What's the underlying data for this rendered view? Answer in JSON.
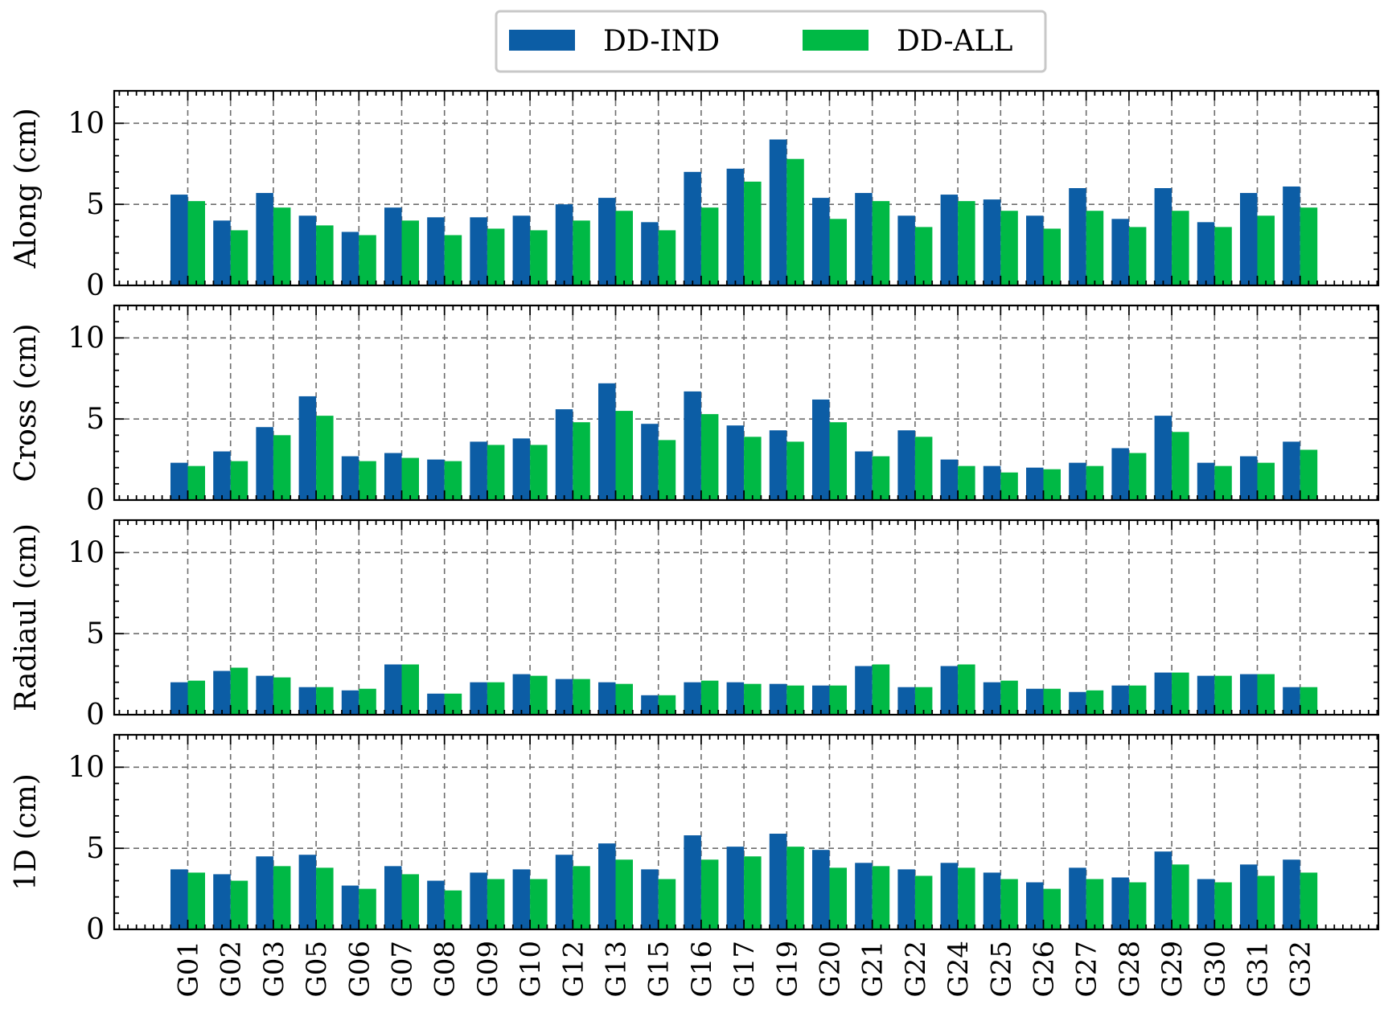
{
  "chart_data": {
    "type": "bar",
    "layout": "4 vertically stacked panels sharing x axis",
    "legend_placement": "top-center",
    "grid": true,
    "categories": [
      "G01",
      "G02",
      "G03",
      "G05",
      "G06",
      "G07",
      "G08",
      "G09",
      "G10",
      "G12",
      "G13",
      "G15",
      "G16",
      "G17",
      "G19",
      "G20",
      "G21",
      "G22",
      "G24",
      "G25",
      "G26",
      "G27",
      "G28",
      "G29",
      "G30",
      "G31",
      "G32"
    ],
    "legend": [
      {
        "name": "DD-IND",
        "color": "#0c5da5"
      },
      {
        "name": "DD-ALL",
        "color": "#00b945"
      }
    ],
    "ylim": [
      0,
      12
    ],
    "yticks": [
      0,
      5,
      10
    ],
    "panels": [
      {
        "ylabel": "Along (cm)",
        "series": [
          {
            "name": "DD-IND",
            "values": [
              5.6,
              4.0,
              5.7,
              4.3,
              3.3,
              4.8,
              4.2,
              4.2,
              4.3,
              5.0,
              5.4,
              3.9,
              7.0,
              7.2,
              9.0,
              5.4,
              5.7,
              4.3,
              5.6,
              5.3,
              4.3,
              6.0,
              4.1,
              6.0,
              3.9,
              5.7,
              6.1
            ]
          },
          {
            "name": "DD-ALL",
            "values": [
              5.2,
              3.4,
              4.8,
              3.7,
              3.1,
              4.0,
              3.1,
              3.5,
              3.4,
              4.0,
              4.6,
              3.4,
              4.8,
              6.4,
              7.8,
              4.1,
              5.2,
              3.6,
              5.2,
              4.6,
              3.5,
              4.6,
              3.6,
              4.6,
              3.6,
              4.3,
              4.8
            ]
          }
        ]
      },
      {
        "ylabel": "Cross (cm)",
        "series": [
          {
            "name": "DD-IND",
            "values": [
              2.3,
              3.0,
              4.5,
              6.4,
              2.7,
              2.9,
              2.5,
              3.6,
              3.8,
              5.6,
              7.2,
              4.7,
              6.7,
              4.6,
              4.3,
              6.2,
              3.0,
              4.3,
              2.5,
              2.1,
              2.0,
              2.3,
              3.2,
              5.2,
              2.3,
              2.7,
              3.6
            ]
          },
          {
            "name": "DD-ALL",
            "values": [
              2.1,
              2.4,
              4.0,
              5.2,
              2.4,
              2.6,
              2.4,
              3.4,
              3.4,
              4.8,
              5.5,
              3.7,
              5.3,
              3.9,
              3.6,
              4.8,
              2.7,
              3.9,
              2.1,
              1.7,
              1.9,
              2.1,
              2.9,
              4.2,
              2.1,
              2.3,
              3.1
            ]
          }
        ]
      },
      {
        "ylabel": "Radiaul (cm)",
        "series": [
          {
            "name": "DD-IND",
            "values": [
              2.0,
              2.7,
              2.4,
              1.7,
              1.5,
              3.1,
              1.3,
              2.0,
              2.5,
              2.2,
              2.0,
              1.2,
              2.0,
              2.0,
              1.9,
              1.8,
              3.0,
              1.7,
              3.0,
              2.0,
              1.6,
              1.4,
              1.8,
              2.6,
              2.4,
              2.5,
              1.7
            ]
          },
          {
            "name": "DD-ALL",
            "values": [
              2.1,
              2.9,
              2.3,
              1.7,
              1.6,
              3.1,
              1.3,
              2.0,
              2.4,
              2.2,
              1.9,
              1.2,
              2.1,
              1.9,
              1.8,
              1.8,
              3.1,
              1.7,
              3.1,
              2.1,
              1.6,
              1.5,
              1.8,
              2.6,
              2.4,
              2.5,
              1.7
            ]
          }
        ]
      },
      {
        "ylabel": "1D (cm)",
        "series": [
          {
            "name": "DD-IND",
            "values": [
              3.7,
              3.4,
              4.5,
              4.6,
              2.7,
              3.9,
              3.0,
              3.5,
              3.7,
              4.6,
              5.3,
              3.7,
              5.8,
              5.1,
              5.9,
              4.9,
              4.1,
              3.7,
              4.1,
              3.5,
              2.9,
              3.8,
              3.2,
              4.8,
              3.1,
              4.0,
              4.3
            ]
          },
          {
            "name": "DD-ALL",
            "values": [
              3.5,
              3.0,
              3.9,
              3.8,
              2.5,
              3.4,
              2.4,
              3.1,
              3.1,
              3.9,
              4.3,
              3.1,
              4.3,
              4.5,
              5.1,
              3.8,
              3.9,
              3.3,
              3.8,
              3.1,
              2.5,
              3.1,
              2.9,
              4.0,
              2.9,
              3.3,
              3.5
            ]
          }
        ]
      }
    ]
  }
}
